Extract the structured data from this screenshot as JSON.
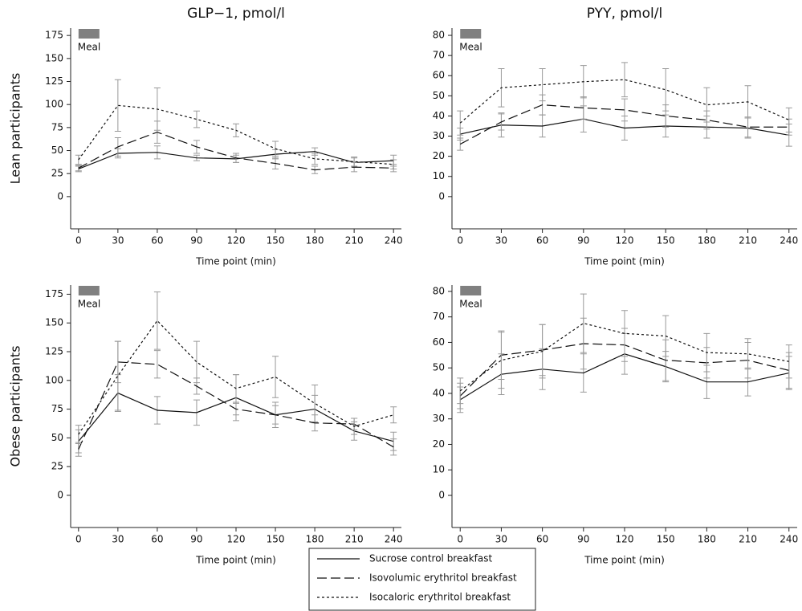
{
  "legend": [
    {
      "name": "Sucrose control breakfast",
      "dash": "solid"
    },
    {
      "name": "Isovolumic erythritol breakfast",
      "dash": "dashed"
    },
    {
      "name": "Isocaloric erythritol breakfast",
      "dash": "dotted"
    }
  ],
  "chart_data": [
    {
      "type": "line",
      "title": "GLP−1, pmol/l",
      "ylabel": "Lean participants",
      "xlabel": "Time point (min)",
      "annotation": "Meal",
      "x": [
        0,
        30,
        60,
        90,
        120,
        150,
        180,
        210,
        240
      ],
      "xlim": [
        -6,
        246
      ],
      "xticks": [
        0,
        30,
        60,
        90,
        120,
        150,
        180,
        210,
        240
      ],
      "ylim": [
        -35,
        183
      ],
      "yticks": [
        0,
        25,
        50,
        75,
        100,
        125,
        150,
        175
      ],
      "series": [
        {
          "dash": "solid",
          "color": "#111111",
          "values": [
            30,
            47,
            48,
            42,
            41,
            46,
            49,
            37,
            39
          ],
          "errors": [
            3,
            5,
            7,
            3,
            4,
            5,
            4,
            5,
            6
          ]
        },
        {
          "dash": "dashed",
          "color": "#111111",
          "values": [
            31,
            54,
            70,
            54,
            42,
            36,
            29,
            32,
            31
          ],
          "errors": [
            3,
            10,
            12,
            7,
            5,
            6,
            4,
            5,
            4
          ]
        },
        {
          "dash": "dotted",
          "color": "#111111",
          "values": [
            40,
            99,
            95,
            84,
            72,
            52,
            41,
            38,
            35
          ],
          "errors": [
            5,
            28,
            23,
            9,
            7,
            8,
            6,
            5,
            5
          ]
        }
      ]
    },
    {
      "type": "line",
      "title": "PYY, pmol/l",
      "xlabel": "Time point (min)",
      "annotation": "Meal",
      "x": [
        0,
        30,
        60,
        90,
        120,
        150,
        180,
        210,
        240
      ],
      "xlim": [
        -6,
        246
      ],
      "xticks": [
        0,
        30,
        60,
        90,
        120,
        150,
        180,
        210,
        240
      ],
      "ylim": [
        -16,
        83.6
      ],
      "yticks": [
        0,
        10,
        20,
        30,
        40,
        50,
        60,
        70,
        80
      ],
      "series": [
        {
          "dash": "solid",
          "color": "#111111",
          "values": [
            31,
            35.5,
            35,
            38.5,
            34,
            35,
            34.5,
            34,
            30.5
          ],
          "errors": [
            3,
            6,
            5.5,
            6.5,
            6,
            5.5,
            5.5,
            5,
            5.5
          ]
        },
        {
          "dash": "dashed",
          "color": "#111111",
          "values": [
            26,
            37,
            45.5,
            44,
            43,
            40,
            38,
            34.5,
            34.5
          ],
          "errors": [
            3,
            4,
            5,
            5.5,
            5.5,
            5.5,
            4.5,
            5,
            4
          ]
        },
        {
          "dash": "dotted",
          "color": "#111111",
          "values": [
            36.5,
            54,
            55.5,
            57,
            58,
            53,
            45.5,
            47,
            38
          ],
          "errors": [
            6,
            9.5,
            8,
            8,
            8.5,
            10.5,
            8.5,
            8,
            6
          ]
        }
      ]
    },
    {
      "type": "line",
      "ylabel": "Obese participants",
      "xlabel": "Time point (min)",
      "annotation": "Meal",
      "x": [
        0,
        30,
        60,
        90,
        120,
        150,
        180,
        210,
        240
      ],
      "xlim": [
        -6,
        246
      ],
      "xticks": [
        0,
        30,
        60,
        90,
        120,
        150,
        180,
        210,
        240
      ],
      "ylim": [
        -28,
        183
      ],
      "yticks": [
        0,
        25,
        50,
        75,
        100,
        125,
        150,
        175
      ],
      "series": [
        {
          "dash": "solid",
          "color": "#111111",
          "values": [
            47,
            89,
            74,
            72,
            85,
            70,
            75,
            56,
            47
          ],
          "errors": [
            10,
            16,
            12,
            11,
            20,
            11,
            12,
            8,
            8
          ]
        },
        {
          "dash": "dashed",
          "color": "#111111",
          "values": [
            40,
            116,
            114,
            95,
            75,
            70,
            63,
            62,
            42
          ],
          "errors": [
            6,
            18,
            12,
            7,
            5,
            8,
            7,
            5,
            7
          ]
        },
        {
          "dash": "dotted",
          "color": "#111111",
          "values": [
            53,
            104,
            152,
            116,
            93,
            103,
            80,
            60,
            70
          ],
          "errors": [
            8,
            30,
            25,
            18,
            12,
            18,
            16,
            7,
            7
          ]
        }
      ]
    },
    {
      "type": "line",
      "xlabel": "Time point (min)",
      "annotation": "Meal",
      "x": [
        0,
        30,
        60,
        90,
        120,
        150,
        180,
        210,
        240
      ],
      "xlim": [
        -6,
        246
      ],
      "xticks": [
        0,
        30,
        60,
        90,
        120,
        150,
        180,
        210,
        240
      ],
      "ylim": [
        -12.6,
        82.5
      ],
      "yticks": [
        0,
        10,
        20,
        30,
        40,
        50,
        60,
        70,
        80
      ],
      "series": [
        {
          "dash": "solid",
          "color": "#111111",
          "values": [
            37.5,
            47.5,
            49.5,
            48,
            55.5,
            50.5,
            44.5,
            44.5,
            48
          ],
          "errors": [
            5,
            8,
            8,
            7.5,
            8,
            6,
            6.5,
            5.5,
            6.5
          ]
        },
        {
          "dash": "dashed",
          "color": "#111111",
          "values": [
            39,
            55,
            57,
            59.5,
            59,
            53,
            52,
            53,
            49
          ],
          "errors": [
            5,
            9.5,
            10,
            10,
            6.5,
            8,
            6,
            7,
            7
          ]
        },
        {
          "dash": "dotted",
          "color": "#111111",
          "values": [
            41,
            53,
            56.5,
            67.5,
            63.5,
            62.5,
            56,
            55.5,
            52.5
          ],
          "errors": [
            5,
            11,
            10.5,
            11.5,
            9,
            8,
            7.5,
            6,
            6.5
          ]
        }
      ]
    }
  ]
}
